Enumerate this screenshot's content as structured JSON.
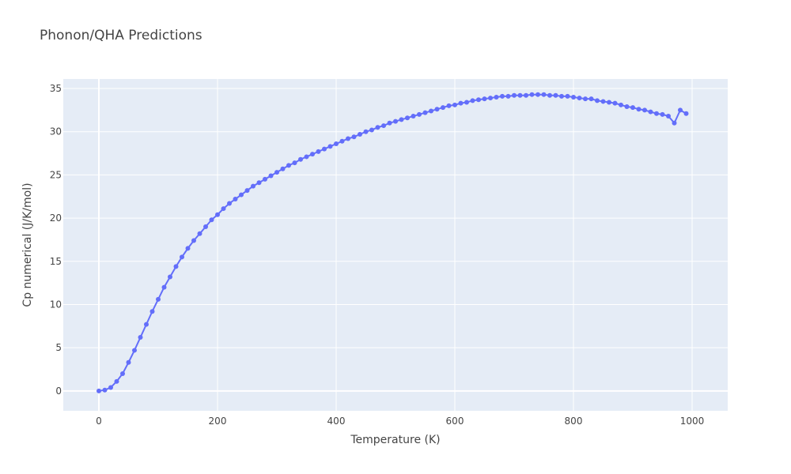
{
  "chart_data": {
    "type": "line",
    "mode": "lines+markers",
    "title": "Phonon/QHA Predictions",
    "xlabel": "Temperature (K)",
    "ylabel": "Cp numerical (J/K/mol)",
    "xlim": [
      -60,
      1060
    ],
    "ylim": [
      -2.3,
      36.1
    ],
    "x_ticks": [
      0,
      200,
      400,
      600,
      800,
      1000
    ],
    "y_ticks": [
      0,
      5,
      10,
      15,
      20,
      25,
      30,
      35
    ],
    "grid": true,
    "legend": "none",
    "colors": {
      "series": "#636efa",
      "plot_bg": "#e5ecf6",
      "grid": "#ffffff"
    },
    "series": [
      {
        "x": [
          0,
          10,
          20,
          30,
          40,
          50,
          60,
          70,
          80,
          90,
          100,
          110,
          120,
          130,
          140,
          150,
          160,
          170,
          180,
          190,
          200,
          210,
          220,
          230,
          240,
          250,
          260,
          270,
          280,
          290,
          300,
          310,
          320,
          330,
          340,
          350,
          360,
          370,
          380,
          390,
          400,
          410,
          420,
          430,
          440,
          450,
          460,
          470,
          480,
          490,
          500,
          510,
          520,
          530,
          540,
          550,
          560,
          570,
          580,
          590,
          600,
          610,
          620,
          630,
          640,
          650,
          660,
          670,
          680,
          690,
          700,
          710,
          720,
          730,
          740,
          750,
          760,
          770,
          780,
          790,
          800,
          810,
          820,
          830,
          840,
          850,
          860,
          870,
          880,
          890,
          900,
          910,
          920,
          930,
          940,
          950,
          960,
          970,
          980,
          990
        ],
        "y": [
          0.0,
          0.1,
          0.4,
          1.1,
          2.0,
          3.3,
          4.7,
          6.2,
          7.7,
          9.2,
          10.6,
          12.0,
          13.2,
          14.4,
          15.5,
          16.5,
          17.4,
          18.2,
          19.0,
          19.8,
          20.4,
          21.1,
          21.7,
          22.2,
          22.7,
          23.2,
          23.7,
          24.1,
          24.5,
          24.9,
          25.3,
          25.7,
          26.1,
          26.4,
          26.8,
          27.1,
          27.4,
          27.7,
          28.0,
          28.3,
          28.6,
          28.9,
          29.2,
          29.4,
          29.7,
          30.0,
          30.2,
          30.5,
          30.7,
          31.0,
          31.2,
          31.4,
          31.6,
          31.8,
          32.0,
          32.2,
          32.4,
          32.6,
          32.8,
          33.0,
          33.1,
          33.3,
          33.4,
          33.6,
          33.7,
          33.8,
          33.9,
          34.0,
          34.1,
          34.1,
          34.2,
          34.2,
          34.2,
          34.3,
          34.3,
          34.3,
          34.2,
          34.2,
          34.1,
          34.1,
          34.0,
          33.9,
          33.8,
          33.8,
          33.6,
          33.5,
          33.4,
          33.3,
          33.1,
          32.9,
          32.8,
          32.6,
          32.5,
          32.3,
          32.1,
          32.0,
          31.8,
          31.0,
          32.5,
          32.1
        ]
      }
    ]
  }
}
